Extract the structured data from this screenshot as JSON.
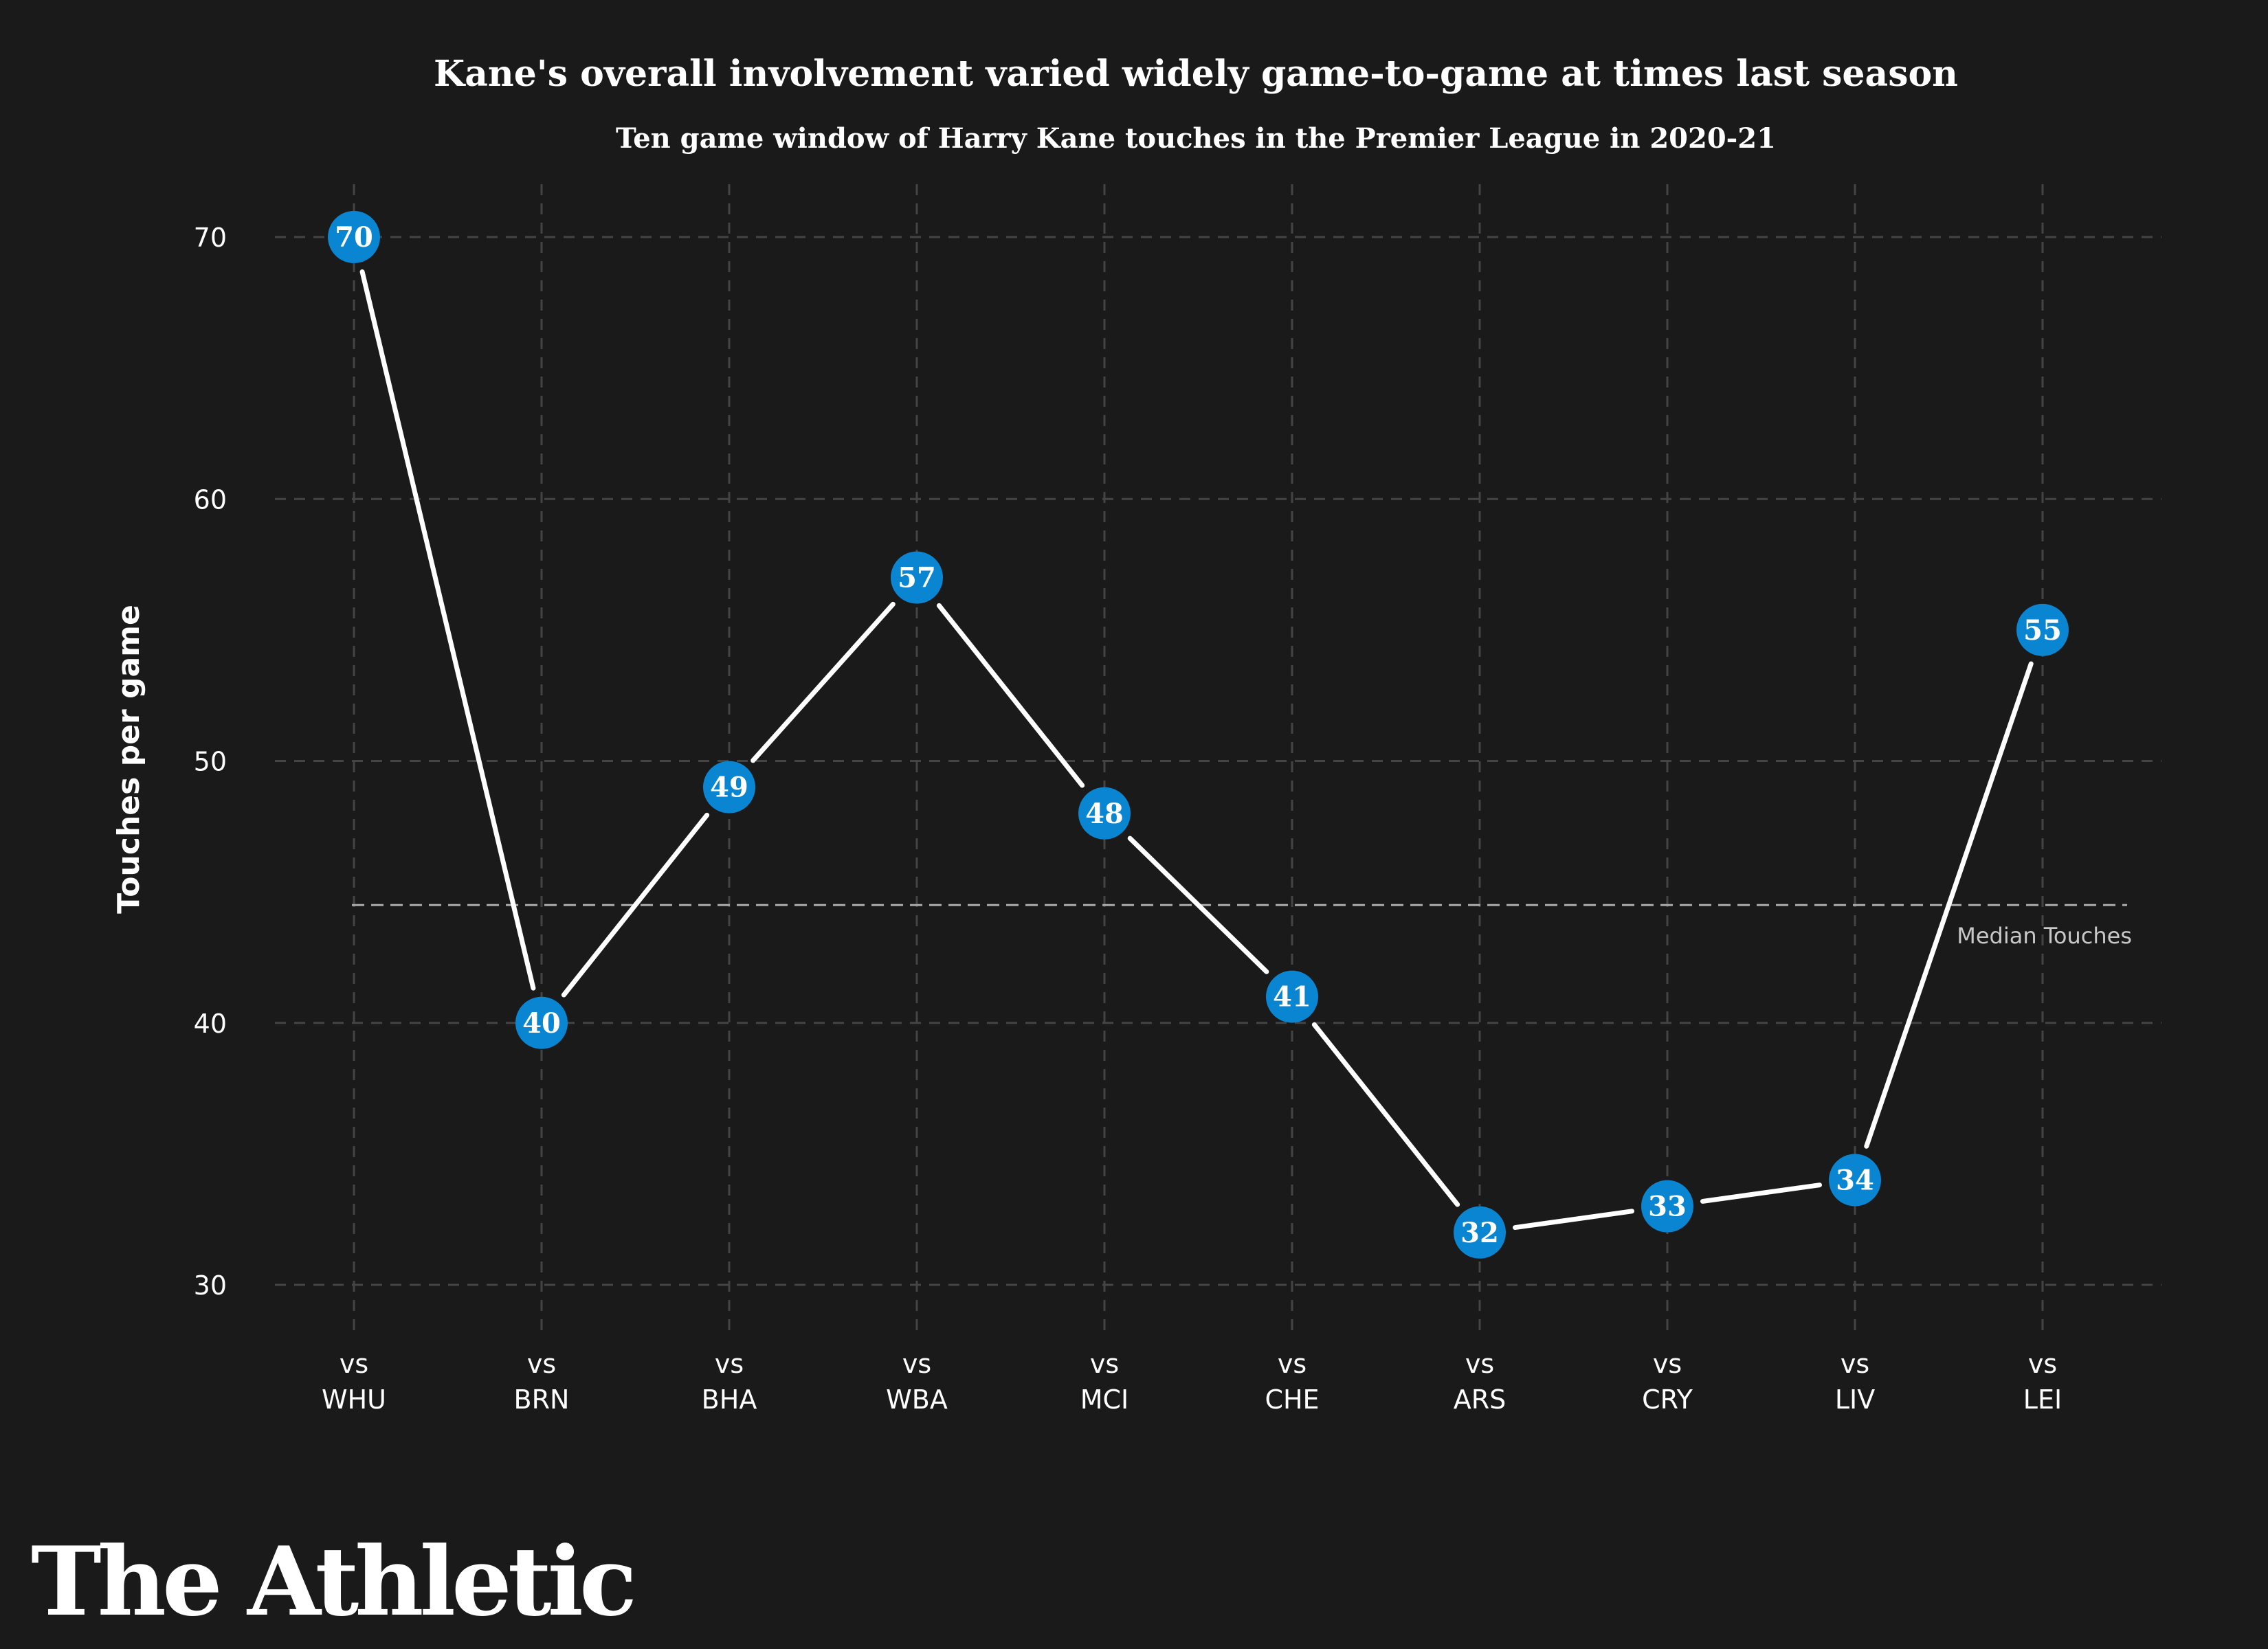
{
  "chart_data": {
    "type": "line",
    "title": "Kane's overall involvement varied widely game-to-game at times last season",
    "subtitle": "Ten game window of Harry Kane touches in the Premier League in 2020-21",
    "ylabel": "Touches per game",
    "xlabel": "",
    "ylim": [
      28,
      72
    ],
    "yticks": [
      30,
      40,
      50,
      60,
      70
    ],
    "grid": true,
    "categories_prefix": "vs",
    "categories": [
      "WHU",
      "BRN",
      "BHA",
      "WBA",
      "MCI",
      "CHE",
      "ARS",
      "CRY",
      "LIV",
      "LEI"
    ],
    "series": [
      {
        "values": [
          70,
          40,
          49,
          57,
          48,
          41,
          32,
          33,
          34,
          55
        ]
      }
    ],
    "reference_line": {
      "label": "Median Touches",
      "value": 44.5
    },
    "colors": {
      "background": "#1a1a1a",
      "marker": "#0a85d1",
      "line": "#ffffff",
      "grid": "#444444",
      "median": "#aaaaaa"
    }
  },
  "brand": {
    "logo_text": "The Athletic"
  }
}
